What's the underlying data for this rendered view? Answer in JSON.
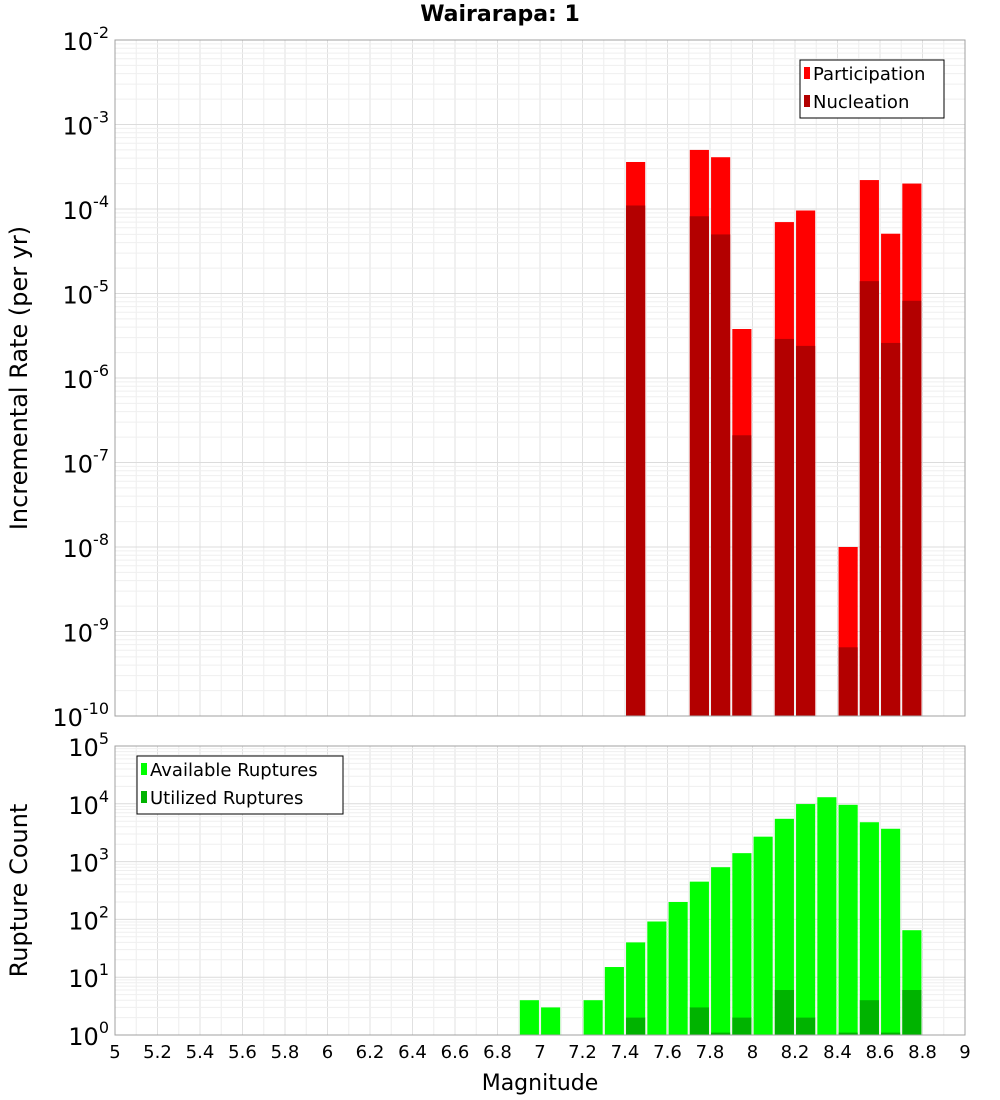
{
  "chart_data": [
    {
      "id": "rate",
      "type": "bar",
      "title": "Wairarapa: 1",
      "xlabel": "Magnitude",
      "ylabel": "Incremental Rate (per yr)",
      "xlim": [
        5,
        9
      ],
      "ylim_exp": [
        -10,
        -2
      ],
      "yscale": "log",
      "grid": true,
      "legend_position": "top-right",
      "bar_width": 0.09,
      "series": [
        {
          "name": "Participation",
          "color": "#ff0000",
          "points": [
            {
              "x": 7.45,
              "y": 0.00036
            },
            {
              "x": 7.75,
              "y": 0.0005
            },
            {
              "x": 7.85,
              "y": 0.00041
            },
            {
              "x": 7.95,
              "y": 3.8e-06
            },
            {
              "x": 8.15,
              "y": 7e-05
            },
            {
              "x": 8.25,
              "y": 9.6e-05
            },
            {
              "x": 8.45,
              "y": 1e-08
            },
            {
              "x": 8.55,
              "y": 0.00022
            },
            {
              "x": 8.65,
              "y": 5.1e-05
            },
            {
              "x": 8.75,
              "y": 0.0002
            }
          ]
        },
        {
          "name": "Nucleation",
          "color": "#b30000",
          "points": [
            {
              "x": 7.45,
              "y": 0.00011
            },
            {
              "x": 7.75,
              "y": 8.2e-05
            },
            {
              "x": 7.85,
              "y": 5e-05
            },
            {
              "x": 7.95,
              "y": 2.1e-07
            },
            {
              "x": 8.15,
              "y": 2.9e-06
            },
            {
              "x": 8.25,
              "y": 2.4e-06
            },
            {
              "x": 8.45,
              "y": 6.5e-10
            },
            {
              "x": 8.55,
              "y": 1.4e-05
            },
            {
              "x": 8.65,
              "y": 2.6e-06
            },
            {
              "x": 8.75,
              "y": 8.2e-06
            }
          ]
        }
      ]
    },
    {
      "id": "count",
      "type": "bar",
      "xlabel": "Magnitude",
      "ylabel": "Rupture Count",
      "xlim": [
        5,
        9
      ],
      "ylim_exp": [
        0,
        5
      ],
      "yscale": "log",
      "grid": true,
      "legend_position": "top-left",
      "bar_width": 0.09,
      "series": [
        {
          "name": "Available Ruptures",
          "color": "#00ff00",
          "points": [
            {
              "x": 6.95,
              "y": 4
            },
            {
              "x": 7.05,
              "y": 3
            },
            {
              "x": 7.25,
              "y": 4
            },
            {
              "x": 7.35,
              "y": 15
            },
            {
              "x": 7.45,
              "y": 40
            },
            {
              "x": 7.55,
              "y": 92
            },
            {
              "x": 7.65,
              "y": 200
            },
            {
              "x": 7.75,
              "y": 450
            },
            {
              "x": 7.85,
              "y": 800
            },
            {
              "x": 7.95,
              "y": 1400
            },
            {
              "x": 8.05,
              "y": 2700
            },
            {
              "x": 8.15,
              "y": 5500
            },
            {
              "x": 8.25,
              "y": 9900
            },
            {
              "x": 8.35,
              "y": 13000
            },
            {
              "x": 8.45,
              "y": 9600
            },
            {
              "x": 8.55,
              "y": 4800
            },
            {
              "x": 8.65,
              "y": 3700
            },
            {
              "x": 8.75,
              "y": 65
            }
          ]
        },
        {
          "name": "Utilized Ruptures",
          "color": "#00b300",
          "points": [
            {
              "x": 7.45,
              "y": 2
            },
            {
              "x": 7.75,
              "y": 3
            },
            {
              "x": 7.85,
              "y": 1.1
            },
            {
              "x": 7.95,
              "y": 2
            },
            {
              "x": 8.15,
              "y": 6
            },
            {
              "x": 8.25,
              "y": 2
            },
            {
              "x": 8.45,
              "y": 1.1
            },
            {
              "x": 8.55,
              "y": 4
            },
            {
              "x": 8.65,
              "y": 1.1
            },
            {
              "x": 8.75,
              "y": 6
            }
          ]
        }
      ]
    }
  ],
  "x_ticks": [
    "5",
    "5.2",
    "5.4",
    "5.6",
    "5.8",
    "6",
    "6.2",
    "6.4",
    "6.6",
    "6.8",
    "7",
    "7.2",
    "7.4",
    "7.6",
    "7.8",
    "8",
    "8.2",
    "8.4",
    "8.6",
    "8.8",
    "9"
  ]
}
